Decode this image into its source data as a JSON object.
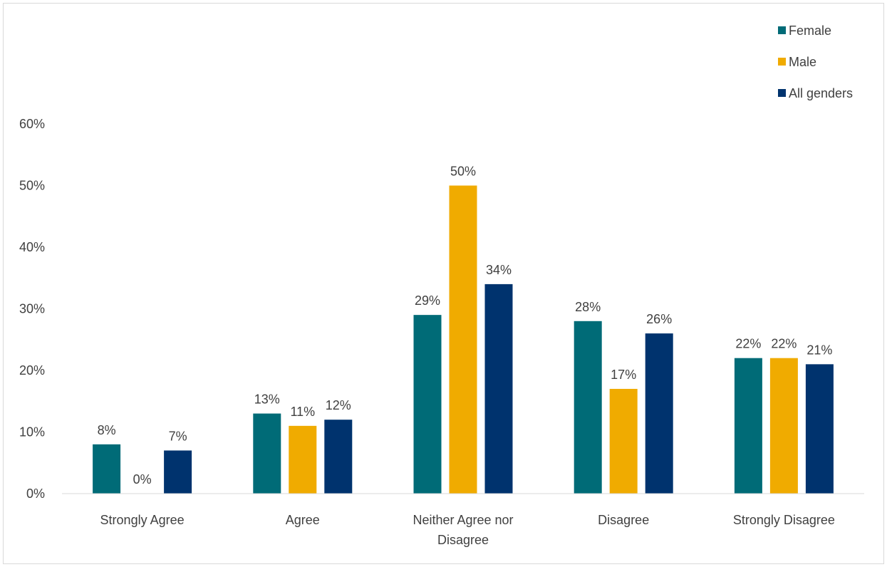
{
  "chart_data": {
    "type": "bar",
    "title": "",
    "xlabel": "",
    "ylabel": "",
    "categories": [
      [
        "Strongly Agree"
      ],
      [
        "Agree"
      ],
      [
        "Neither Agree nor",
        "Disagree"
      ],
      [
        "Disagree"
      ],
      [
        "Strongly Disagree"
      ]
    ],
    "series": [
      {
        "name": "Female",
        "color": "#006B77",
        "values": [
          8,
          13,
          29,
          28,
          22
        ],
        "labels": [
          "8%",
          "13%",
          "29%",
          "28%",
          "22%"
        ]
      },
      {
        "name": "Male",
        "color": "#F0AB00",
        "values": [
          0,
          11,
          50,
          17,
          22
        ],
        "labels": [
          "0%",
          "11%",
          "50%",
          "17%",
          "22%"
        ]
      },
      {
        "name": "All genders",
        "color": "#00336E",
        "values": [
          7,
          12,
          34,
          26,
          21
        ],
        "labels": [
          "7%",
          "12%",
          "34%",
          "26%",
          "21%"
        ]
      }
    ],
    "y_ticks": [
      0,
      10,
      20,
      30,
      40,
      50,
      60
    ],
    "y_tick_labels": [
      "0%",
      "10%",
      "20%",
      "30%",
      "40%",
      "50%",
      "60%"
    ],
    "ylim": [
      0,
      60
    ],
    "grid": false,
    "legend_position": "top-right"
  }
}
